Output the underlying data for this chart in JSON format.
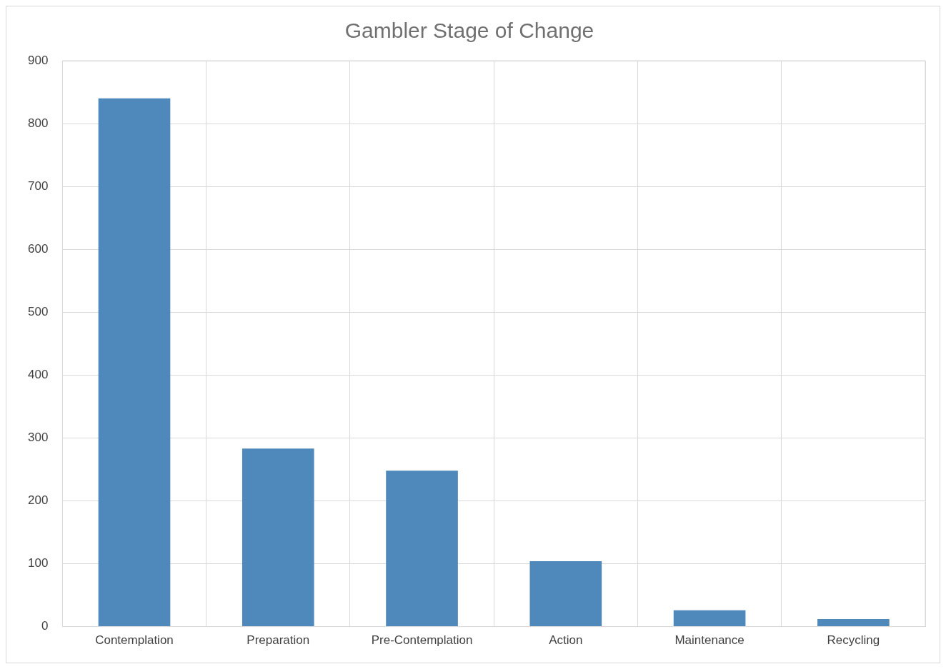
{
  "chart_data": {
    "type": "bar",
    "title": "Gambler Stage of Change",
    "categories": [
      "Contemplation",
      "Preparation",
      "Pre-Contemplation",
      "Action",
      "Maintenance",
      "Recycling"
    ],
    "values": [
      840,
      283,
      248,
      104,
      26,
      12
    ],
    "color": "#4f88bb",
    "ylim": [
      0,
      900
    ],
    "yticks": [
      0,
      100,
      200,
      300,
      400,
      500,
      600,
      700,
      800,
      900
    ],
    "grid": true,
    "legend": false
  }
}
